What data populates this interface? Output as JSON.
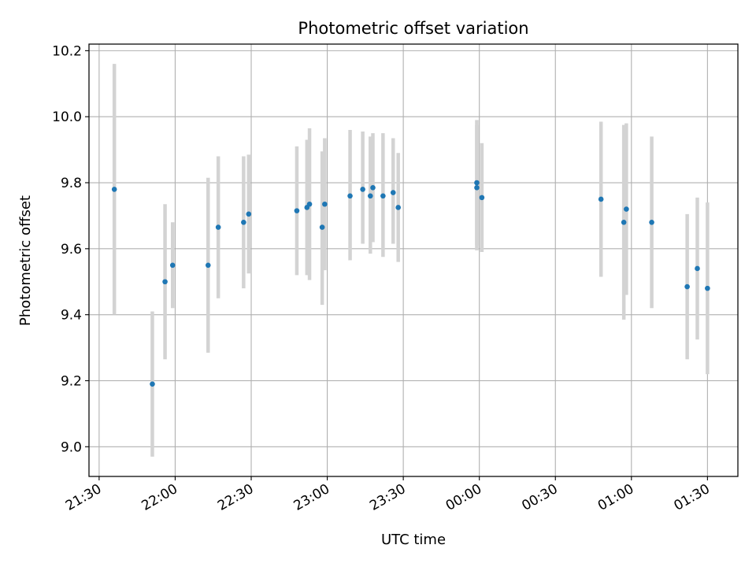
{
  "chart_data": {
    "type": "scatter",
    "title": "Photometric offset variation",
    "xlabel": "UTC time",
    "ylabel": "Photometric offset",
    "x_unit": "UTC time (HH:MM), times after 00:00 belong to the following day",
    "x_ticks": [
      "21:30",
      "22:00",
      "22:30",
      "23:00",
      "23:30",
      "00:00",
      "00:30",
      "01:00",
      "01:30"
    ],
    "y_ticks": [
      "9.0",
      "9.2",
      "9.4",
      "9.6",
      "9.8",
      "10.0",
      "10.2"
    ],
    "xlim": [
      "21:26",
      "01:42"
    ],
    "ylim": [
      8.91,
      10.22
    ],
    "grid": true,
    "colors": {
      "point": "#1f77b4",
      "errorbar": "#d3d3d3",
      "grid": "#b0b0b0"
    },
    "series": [
      {
        "points": [
          {
            "x": "21:36",
            "y": 9.78,
            "lo": 9.4,
            "hi": 10.16
          },
          {
            "x": "21:51",
            "y": 9.19,
            "lo": 8.97,
            "hi": 9.41
          },
          {
            "x": "21:56",
            "y": 9.5,
            "lo": 9.265,
            "hi": 9.735
          },
          {
            "x": "21:59",
            "y": 9.55,
            "lo": 9.42,
            "hi": 9.68
          },
          {
            "x": "22:13",
            "y": 9.55,
            "lo": 9.285,
            "hi": 9.815
          },
          {
            "x": "22:17",
            "y": 9.665,
            "lo": 9.45,
            "hi": 9.88
          },
          {
            "x": "22:27",
            "y": 9.68,
            "lo": 9.48,
            "hi": 9.88
          },
          {
            "x": "22:29",
            "y": 9.705,
            "lo": 9.525,
            "hi": 9.885
          },
          {
            "x": "22:48",
            "y": 9.715,
            "lo": 9.52,
            "hi": 9.91
          },
          {
            "x": "22:52",
            "y": 9.725,
            "lo": 9.52,
            "hi": 9.93
          },
          {
            "x": "22:53",
            "y": 9.735,
            "lo": 9.505,
            "hi": 9.965
          },
          {
            "x": "22:58",
            "y": 9.665,
            "lo": 9.43,
            "hi": 9.895
          },
          {
            "x": "22:59",
            "y": 9.735,
            "lo": 9.535,
            "hi": 9.935
          },
          {
            "x": "23:09",
            "y": 9.76,
            "lo": 9.565,
            "hi": 9.96
          },
          {
            "x": "23:14",
            "y": 9.78,
            "lo": 9.615,
            "hi": 9.955
          },
          {
            "x": "23:17",
            "y": 9.76,
            "lo": 9.585,
            "hi": 9.94
          },
          {
            "x": "23:18",
            "y": 9.785,
            "lo": 9.62,
            "hi": 9.95
          },
          {
            "x": "23:22",
            "y": 9.76,
            "lo": 9.575,
            "hi": 9.95
          },
          {
            "x": "23:26",
            "y": 9.77,
            "lo": 9.615,
            "hi": 9.935
          },
          {
            "x": "23:28",
            "y": 9.725,
            "lo": 9.56,
            "hi": 9.89
          },
          {
            "x": "23:59",
            "y": 9.785,
            "lo": 9.595,
            "hi": 9.975
          },
          {
            "x": "23:59",
            "y": 9.8,
            "lo": 9.61,
            "hi": 9.99
          },
          {
            "x": "00:01",
            "y": 9.755,
            "lo": 9.59,
            "hi": 9.92
          },
          {
            "x": "00:48",
            "y": 9.75,
            "lo": 9.515,
            "hi": 9.985
          },
          {
            "x": "00:57",
            "y": 9.68,
            "lo": 9.385,
            "hi": 9.975
          },
          {
            "x": "00:58",
            "y": 9.72,
            "lo": 9.46,
            "hi": 9.98
          },
          {
            "x": "01:08",
            "y": 9.68,
            "lo": 9.42,
            "hi": 9.94
          },
          {
            "x": "01:22",
            "y": 9.485,
            "lo": 9.265,
            "hi": 9.705
          },
          {
            "x": "01:26",
            "y": 9.54,
            "lo": 9.325,
            "hi": 9.755
          },
          {
            "x": "01:30",
            "y": 9.48,
            "lo": 9.22,
            "hi": 9.74
          }
        ]
      }
    ]
  }
}
